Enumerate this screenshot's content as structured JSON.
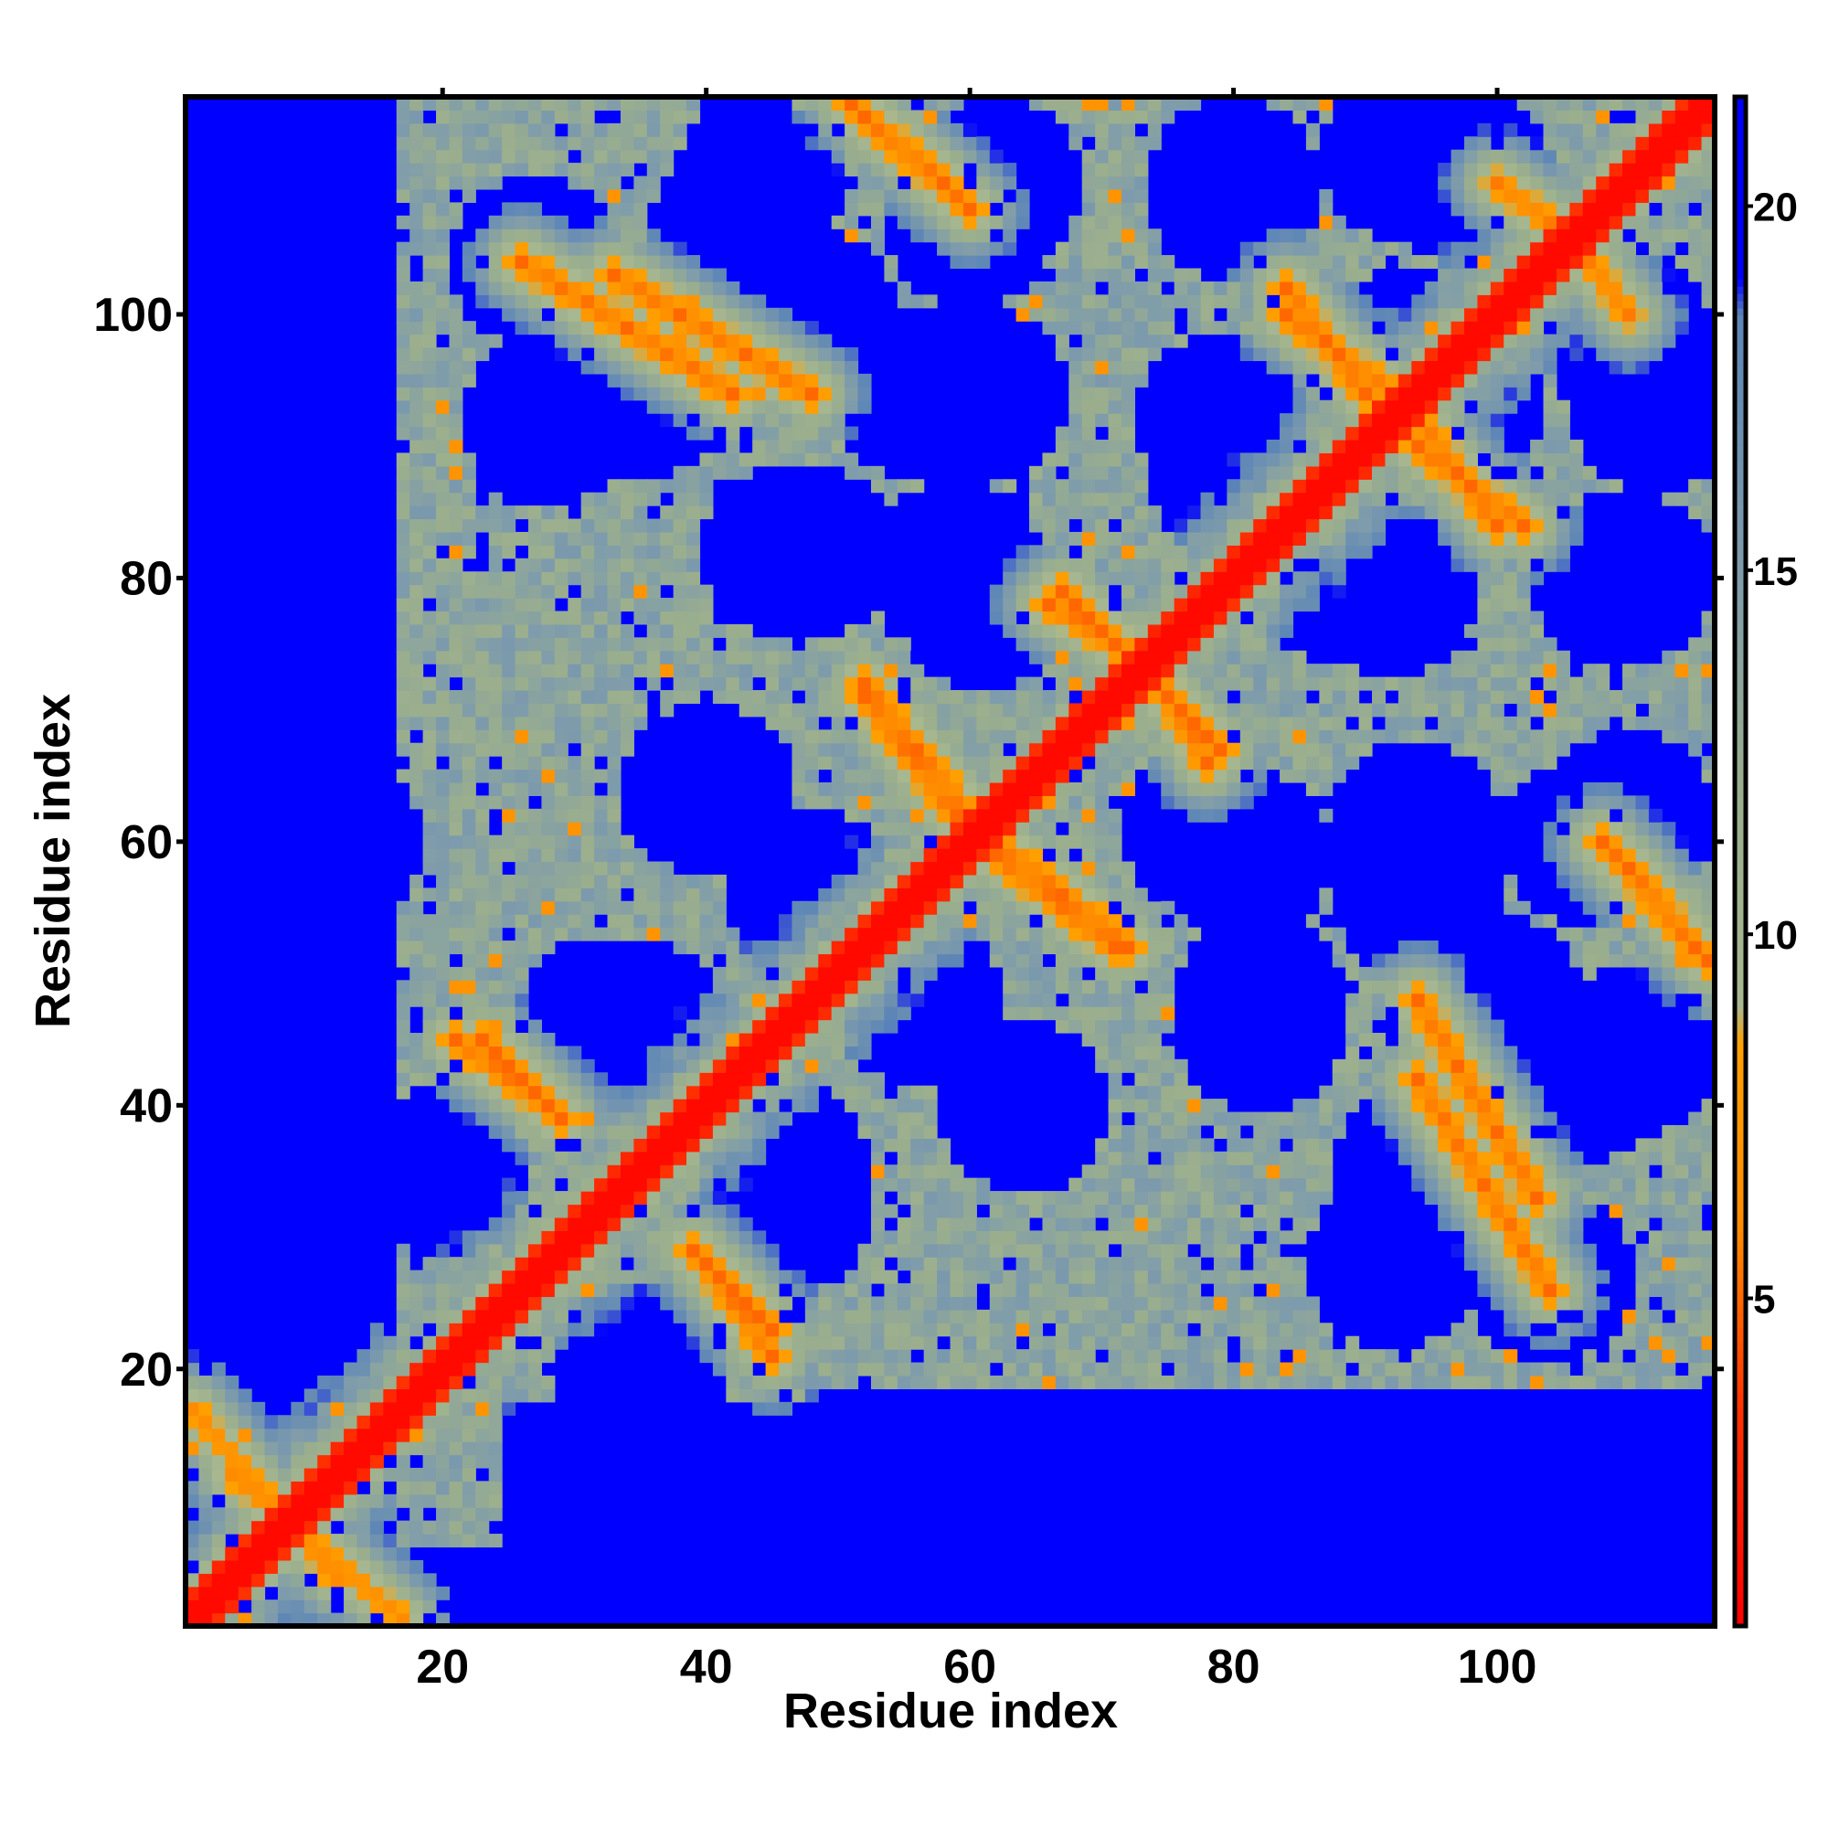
{
  "chart_data": {
    "type": "heatmap",
    "title": "",
    "xlabel": "Residue index",
    "ylabel": "Residue index",
    "n_residues": 116,
    "xlim": [
      0.5,
      116.5
    ],
    "ylim": [
      0.5,
      116.5
    ],
    "x_ticks": [
      20,
      40,
      60,
      80,
      100
    ],
    "y_ticks": [
      20,
      40,
      60,
      80,
      100
    ],
    "x_tick_labels": [
      "20",
      "40",
      "60",
      "80",
      "100"
    ],
    "y_tick_labels": [
      "20",
      "40",
      "60",
      "80",
      "100"
    ],
    "colorbar": {
      "range": [
        0.5,
        21.5
      ],
      "ticks": [
        5,
        10,
        15,
        20
      ],
      "tick_labels": [
        "5",
        "10",
        "15",
        "20"
      ],
      "stops": [
        {
          "value": 0.5,
          "color": "#ff0000"
        },
        {
          "value": 3.5,
          "color": "#ff3300"
        },
        {
          "value": 6.0,
          "color": "#ff8c00"
        },
        {
          "value": 8.5,
          "color": "#ffa000"
        },
        {
          "value": 9.0,
          "color": "#a8b890"
        },
        {
          "value": 12.0,
          "color": "#9aae8e"
        },
        {
          "value": 15.0,
          "color": "#7f9cab"
        },
        {
          "value": 18.5,
          "color": "#5d86b7"
        },
        {
          "value": 19.0,
          "color": "#0000ff"
        },
        {
          "value": 21.5,
          "color": "#0000ff"
        }
      ]
    },
    "grid": false,
    "legend": "colorbar-right",
    "description_of_values": "Symmetric residue-residue distance map: values below ~8.5 red/orange (contacts), 8.5-19 grey-green/steel, above ~19 blue. Main diagonal red.",
    "features": {
      "diagonal_band": {
        "half_width": 1.5
      },
      "antiparallel_contacts": [
        {
          "from": [
            23,
            45
          ],
          "to": [
            29,
            39
          ],
          "strength": 6.5
        },
        {
          "from": [
            40,
            28
          ],
          "to": [
            45,
            21
          ],
          "strength": 6.5
        },
        {
          "from": [
            26,
            104
          ],
          "to": [
            42,
            94
          ],
          "strength": 6.5
        },
        {
          "from": [
            52,
            115
          ],
          "to": [
            58,
            110
          ],
          "strength": 6.5
        },
        {
          "from": [
            52,
            72
          ],
          "to": [
            60,
            62
          ],
          "strength": 6.5
        },
        {
          "from": [
            62,
            59
          ],
          "to": [
            71,
            52
          ],
          "strength": 6.5
        },
        {
          "from": [
            67,
            79
          ],
          "to": [
            73,
            73
          ],
          "strength": 6.5
        },
        {
          "from": [
            74,
            73
          ],
          "to": [
            78,
            66
          ],
          "strength": 6.5
        },
        {
          "from": [
            84,
            102
          ],
          "to": [
            90,
            94
          ],
          "strength": 6.5
        },
        {
          "from": [
            94,
            92
          ],
          "to": [
            100,
            84
          ],
          "strength": 6.5
        },
        {
          "from": [
            94,
            48
          ],
          "to": [
            103,
            33
          ],
          "strength": 6.5
        },
        {
          "from": [
            108,
            60
          ],
          "to": [
            116,
            51
          ],
          "strength": 6.5
        },
        {
          "from": [
            4,
            12
          ],
          "to": [
            17,
            1
          ],
          "strength": 7.5
        },
        {
          "from": [
            100,
            110
          ],
          "to": [
            104,
            107
          ],
          "strength": 7.0
        }
      ],
      "blue_voids_centers": [
        [
          42,
          106
        ],
        [
          60,
          107
        ],
        [
          80,
          109
        ],
        [
          98,
          110
        ],
        [
          35,
          94
        ],
        [
          56,
          94
        ],
        [
          79,
          92
        ],
        [
          97,
          93
        ],
        [
          112,
          93
        ],
        [
          46,
          82
        ],
        [
          59,
          81
        ],
        [
          88,
          80
        ],
        [
          110,
          80
        ],
        [
          40,
          64
        ],
        [
          78,
          61
        ],
        [
          94,
          61
        ],
        [
          110,
          62
        ],
        [
          35,
          46
        ],
        [
          56,
          48
        ],
        [
          82,
          48
        ],
        [
          100,
          48
        ],
        [
          110,
          44
        ],
        [
          46,
          32
        ],
        [
          92,
          28
        ],
        [
          104,
          27
        ],
        [
          35,
          20
        ],
        [
          60,
          12
        ]
      ]
    }
  }
}
